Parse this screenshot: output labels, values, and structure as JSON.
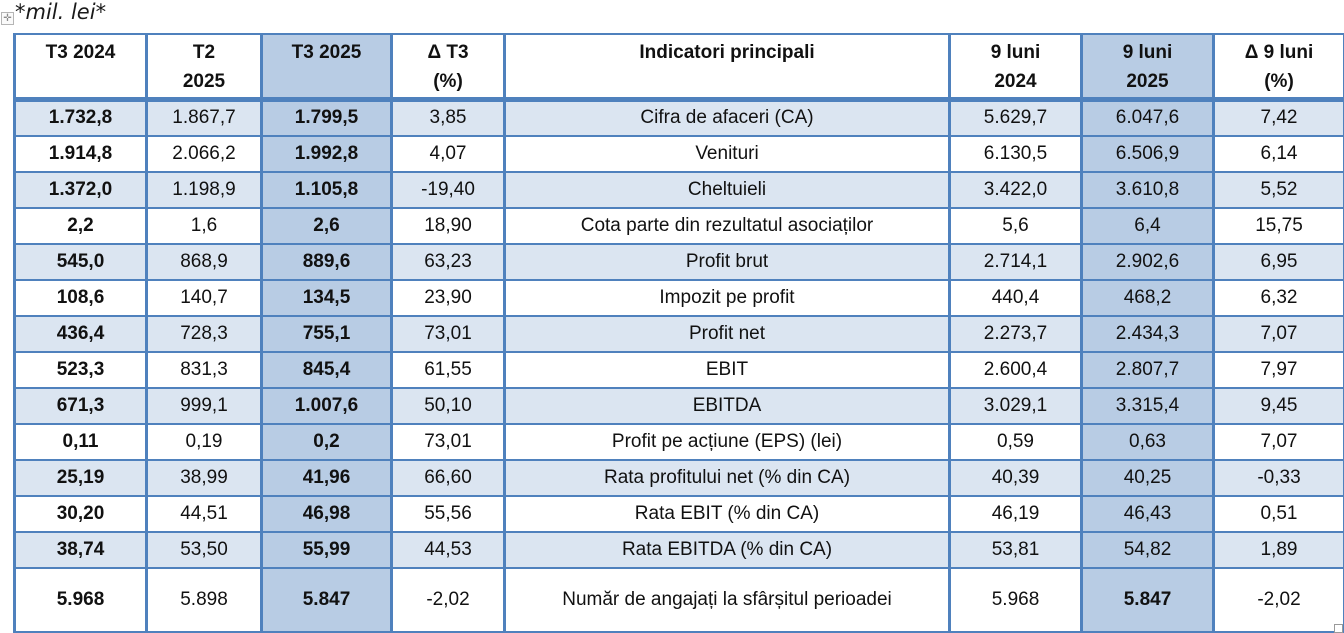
{
  "note": "*mil. lei*",
  "icons": {
    "move_handle_glyph": "✛"
  },
  "colors": {
    "border": "#4f81bd",
    "row_alt": "#dbe5f1",
    "column_highlight": "#b8cce4",
    "text": "#111111"
  },
  "table": {
    "columns": [
      {
        "key": "t3-2024",
        "label": "T3 2024",
        "highlight": false,
        "values_bold": true
      },
      {
        "key": "t2-2025",
        "label": "T2\n2025",
        "highlight": false,
        "values_bold": false
      },
      {
        "key": "t3-2025",
        "label": "T3 2025",
        "highlight": true,
        "values_bold": true
      },
      {
        "key": "delta-t3",
        "label": "Δ T3\n(%)",
        "highlight": false,
        "values_bold": false
      },
      {
        "key": "indicator",
        "label": "Indicatori principali",
        "highlight": false,
        "values_bold": false
      },
      {
        "key": "9l-2024",
        "label": "9 luni\n2024",
        "highlight": false,
        "values_bold": false
      },
      {
        "key": "9l-2025",
        "label": "9 luni\n2025",
        "highlight": true,
        "values_bold": false
      },
      {
        "key": "delta-9l",
        "label": "Δ 9 luni\n(%)",
        "highlight": false,
        "values_bold": false
      }
    ],
    "rows": [
      {
        "cells": [
          "1.732,8",
          "1.867,7",
          "1.799,5",
          "3,85",
          "Cifra de afaceri (CA)",
          "5.629,7",
          "6.047,6",
          "7,42"
        ]
      },
      {
        "cells": [
          "1.914,8",
          "2.066,2",
          "1.992,8",
          "4,07",
          "Venituri",
          "6.130,5",
          "6.506,9",
          "6,14"
        ]
      },
      {
        "cells": [
          "1.372,0",
          "1.198,9",
          "1.105,8",
          "-19,40",
          "Cheltuieli",
          "3.422,0",
          "3.610,8",
          "5,52"
        ]
      },
      {
        "cells": [
          "2,2",
          "1,6",
          "2,6",
          "18,90",
          "Cota parte din rezultatul asociaților",
          "5,6",
          "6,4",
          "15,75"
        ]
      },
      {
        "cells": [
          "545,0",
          "868,9",
          "889,6",
          "63,23",
          "Profit brut",
          "2.714,1",
          "2.902,6",
          "6,95"
        ]
      },
      {
        "cells": [
          "108,6",
          "140,7",
          "134,5",
          "23,90",
          "Impozit pe profit",
          "440,4",
          "468,2",
          "6,32"
        ]
      },
      {
        "cells": [
          "436,4",
          "728,3",
          "755,1",
          "73,01",
          "Profit net",
          "2.273,7",
          "2.434,3",
          "7,07"
        ]
      },
      {
        "cells": [
          "523,3",
          "831,3",
          "845,4",
          "61,55",
          "EBIT",
          "2.600,4",
          "2.807,7",
          "7,97"
        ]
      },
      {
        "cells": [
          "671,3",
          "999,1",
          "1.007,6",
          "50,10",
          "EBITDA",
          "3.029,1",
          "3.315,4",
          "9,45"
        ]
      },
      {
        "cells": [
          "0,11",
          "0,19",
          "0,2",
          "73,01",
          "Profit pe acțiune (EPS) (lei)",
          "0,59",
          "0,63",
          "7,07"
        ]
      },
      {
        "cells": [
          "25,19",
          "38,99",
          "41,96",
          "66,60",
          "Rata profitului net (% din CA)",
          "40,39",
          "40,25",
          "-0,33"
        ]
      },
      {
        "cells": [
          "30,20",
          "44,51",
          "46,98",
          "55,56",
          "Rata EBIT (% din CA)",
          "46,19",
          "46,43",
          "0,51"
        ]
      },
      {
        "cells": [
          "38,74",
          "53,50",
          "55,99",
          "44,53",
          "Rata EBITDA (% din CA)",
          "53,81",
          "54,82",
          "1,89"
        ]
      },
      {
        "cells": [
          "5.968",
          "5.898",
          "5.847",
          "-2,02",
          "Număr de angajați la sfârșitul perioadei",
          "5.968",
          "5.847",
          "-2,02"
        ],
        "tall": true,
        "bold_cols": [
          0,
          2,
          6
        ],
        "valign": [
          "bottom",
          "bottom",
          "top",
          "top",
          "middle",
          "bottom",
          "bottom",
          "bottom"
        ]
      }
    ]
  }
}
